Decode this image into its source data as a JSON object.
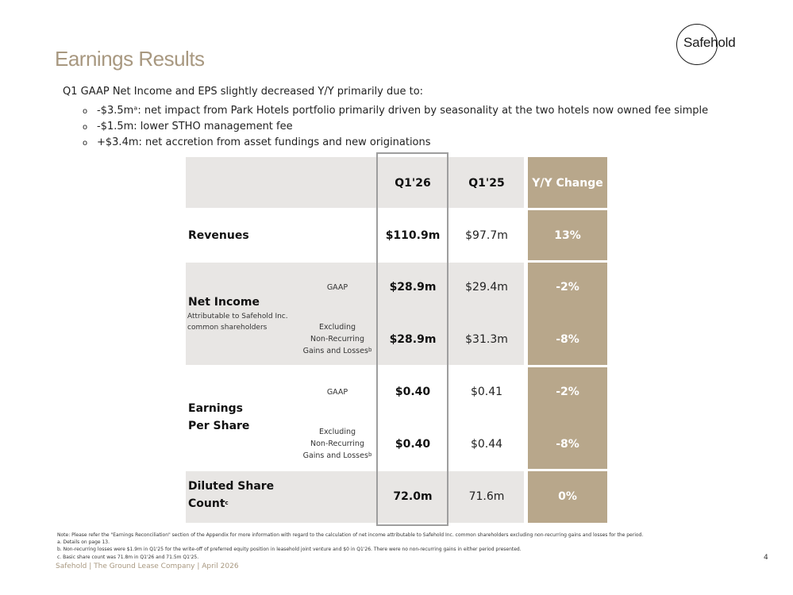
{
  "logo": "Safehold",
  "title": "Earnings Results",
  "intro": "Q1 GAAP Net Income and EPS slightly decreased Y/Y primarily due to:",
  "bullets": [
    {
      "marker": "o",
      "text": "-$3.5mᵃ: net impact from Park Hotels portfolio primarily driven by seasonality at the two hotels now owned fee simple"
    },
    {
      "marker": "o",
      "text": "-$1.5m: lower STHO management fee"
    },
    {
      "marker": "o",
      "text": "+$3.4m: net accretion from asset fundings and new originations"
    }
  ],
  "table": {
    "headers": {
      "current": "Q1'26",
      "prior": "Q1'25",
      "change": "Y/Y Change"
    },
    "revenues": {
      "label": "Revenues",
      "current": "$110.9m",
      "prior": "$97.7m",
      "change": "13%"
    },
    "net_income": {
      "label": "Net Income",
      "sublabel_1": "Attributable to Safehold Inc.",
      "sublabel_2": "common shareholders",
      "gaap": {
        "label": "GAAP",
        "current": "$28.9m",
        "prior": "$29.4m",
        "change": "-2%"
      },
      "excluding": {
        "label_1": "Excluding",
        "label_2": "Non-Recurring",
        "label_3": "Gains and Losses",
        "sup": "b",
        "current": "$28.9m",
        "prior": "$31.3m",
        "change": "-8%"
      }
    },
    "eps": {
      "label_1": "Earnings",
      "label_2": "Per Share",
      "gaap": {
        "label": "GAAP",
        "current": "$0.40",
        "prior": "$0.41",
        "change": "-2%"
      },
      "excluding": {
        "label_1": "Excluding",
        "label_2": "Non-Recurring",
        "label_3": "Gains and Losses",
        "sup": "b",
        "current": "$0.40",
        "prior": "$0.44",
        "change": "-8%"
      }
    },
    "diluted": {
      "label_1": "Diluted Share",
      "label_2": "Count",
      "sup": "c",
      "current": "72.0m",
      "prior": "71.6m",
      "change": "0%"
    }
  },
  "notes": [
    "Note: Please refer the \"Earnings Reconciliation\" section of the Appendix for more information with regard to the calculation of net income attributable to Safehold Inc. common shareholders excluding non-recurring gains and losses for the period.",
    "a.      Details on page 13.",
    "b.      Non-recurring losses were $1.9m in Q1'25 for the write-off of preferred equity position in leasehold joint venture and $0 in Q1'26. There were no non-recurring gains in either period presented.",
    "c.      Basic share count was 71.8m in Q1'26 and 71.5m Q1'25."
  ],
  "footer": "Safehold | The Ground Lease Company | April 2026",
  "page_number": "4",
  "colors": {
    "accent": "#a89880",
    "change_column": "#b8a78b",
    "row_band": "#e8e6e4",
    "highlight_border": "#9e9e9e"
  }
}
